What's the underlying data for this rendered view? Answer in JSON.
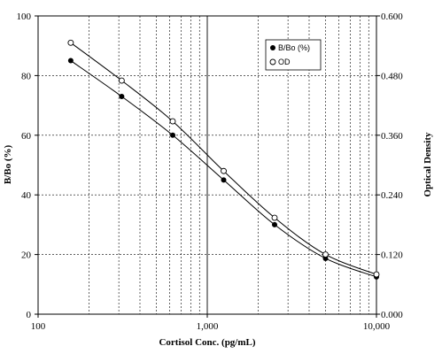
{
  "chart_data": {
    "type": "scatter",
    "title": "",
    "xlabel": "Cortisol Conc. (pg/mL)",
    "ylabel": "B/Bo (%)",
    "y2label": "Optical Density",
    "x_scale": "log",
    "xlim": [
      100,
      10000
    ],
    "ylim": [
      0,
      100
    ],
    "y2lim": [
      0,
      0.6
    ],
    "x_ticks": [
      100,
      1000,
      10000
    ],
    "x_tick_labels": [
      "100",
      "1,000",
      "10,000"
    ],
    "y_ticks": [
      0,
      20,
      40,
      60,
      80,
      100
    ],
    "y_tick_labels": [
      "0",
      "20",
      "40",
      "60",
      "80",
      "100"
    ],
    "y2_ticks": [
      0,
      0.12,
      0.24,
      0.36,
      0.48,
      0.6
    ],
    "y2_tick_labels": [
      "0.000",
      "0.120",
      "0.240",
      "0.360",
      "0.480",
      "0.600"
    ],
    "grid": true,
    "legend_position": "top-right",
    "series": [
      {
        "name": "B/Bo (%)",
        "axis": "left",
        "marker": "filled-circle",
        "x": [
          156,
          312,
          625,
          1250,
          2500,
          5000,
          10000
        ],
        "y": [
          85,
          73,
          60,
          45,
          30,
          18.7,
          12.5
        ]
      },
      {
        "name": "OD",
        "axis": "right",
        "marker": "open-circle",
        "x": [
          156,
          312,
          625,
          1250,
          2500,
          5000,
          10000
        ],
        "y": [
          0.546,
          0.47,
          0.388,
          0.288,
          0.194,
          0.12,
          0.08
        ]
      }
    ]
  }
}
